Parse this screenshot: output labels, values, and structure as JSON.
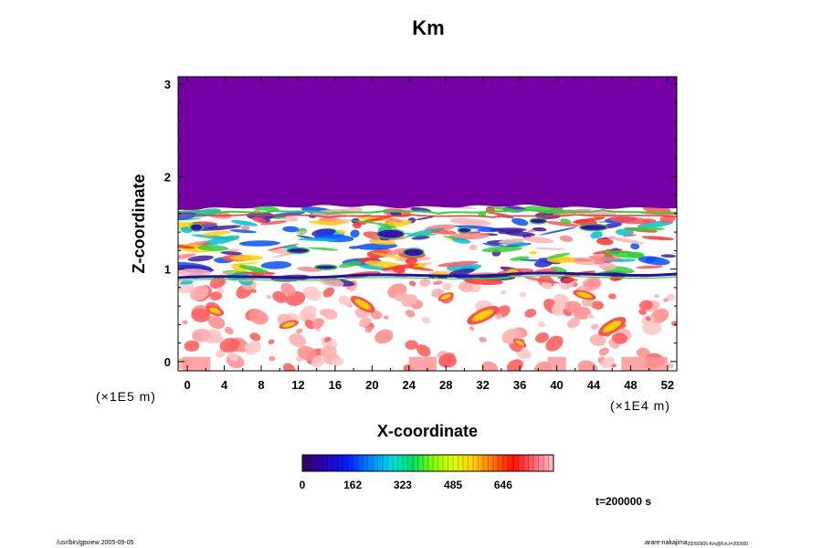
{
  "chart_data": {
    "type": "heatmap",
    "title": "Km",
    "xlabel": "X-coordinate",
    "ylabel": "Z-coordinate",
    "x_scale_label": "(×1E4 m)",
    "y_scale_label": "(×1E5 m)",
    "xlim": [
      -1,
      53
    ],
    "ylim": [
      -0.1,
      3.08
    ],
    "x_ticks": [
      "0",
      "4",
      "8",
      "12",
      "16",
      "20",
      "24",
      "28",
      "32",
      "36",
      "40",
      "44",
      "48",
      "52"
    ],
    "y_ticks": [
      "0",
      "1",
      "2",
      "3"
    ],
    "colorbar": {
      "range": [
        0,
        808
      ],
      "tick_labels": [
        "0",
        "162",
        "323",
        "485",
        "646"
      ],
      "tick_values": [
        0,
        162,
        323,
        485,
        646
      ]
    },
    "field_summary": {
      "upper_region_z_above": 1.65,
      "upper_region_value": 0,
      "turbulent_layer_z": [
        0.85,
        1.65
      ],
      "lower_region_value_note": "mostly white (high) with scattered red/yellow features"
    },
    "annotation": "t=200000 s"
  },
  "footer": {
    "left": "/usr/bin/gpview 2005-09-05",
    "right": "arare-nakajima",
    "right_sub": "20050905-Km@Km,t=200000"
  }
}
